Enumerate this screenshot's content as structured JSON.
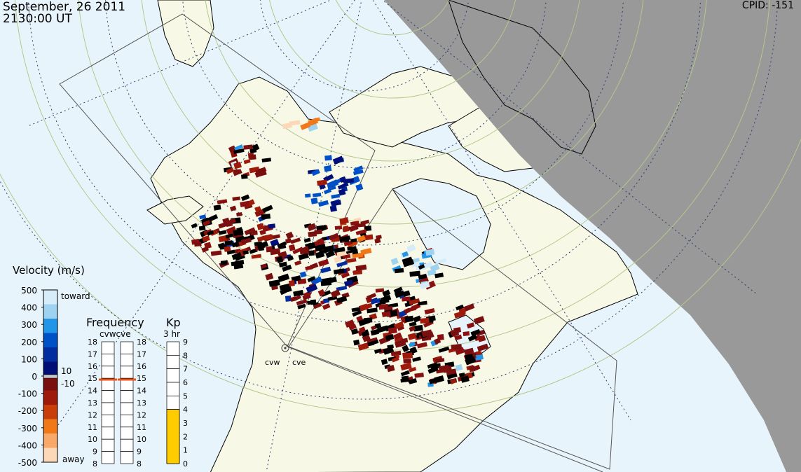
{
  "header": {
    "date": "September, 26 2011",
    "time": "2130:00 UT",
    "cpid": "CPID:  -151"
  },
  "radars": [
    "cvw",
    "cve"
  ],
  "velocity_scale": {
    "title": "Velocity (m/s)",
    "ticks": [
      "500",
      "400",
      "300",
      "200",
      "100",
      "0",
      "-100",
      "-200",
      "-300",
      "-400",
      "-500"
    ],
    "toward_label": "toward",
    "away_label": "away",
    "gs_labels": [
      "10",
      "-10"
    ],
    "colors": [
      "#d6ecf8",
      "#9dd2f0",
      "#2196e8",
      "#0050c8",
      "#002ea0",
      "#000f78",
      "#7a0f0f",
      "#9e1a0a",
      "#c83d08",
      "#f07818",
      "#f8a868",
      "#fcd8b8"
    ]
  },
  "frequency": {
    "title": "Frequency",
    "subtitle": "cvwcve",
    "ticks": [
      "18",
      "17",
      "16",
      "15",
      "14",
      "13",
      "12",
      "11",
      "10",
      "9",
      "8"
    ],
    "values_mhz": {
      "cvw": 14.9,
      "cve": 14.9
    }
  },
  "kp": {
    "title": "Kp",
    "subtitle": "3 hr",
    "ticks": [
      "9",
      "8",
      "7",
      "6",
      "5",
      "4",
      "3",
      "2",
      "1",
      "0"
    ],
    "value": 4,
    "fill_color": "#ffcc00"
  },
  "colors": {
    "ocean": "#e8f4fb",
    "land": "#f8f8e6",
    "night_shade": "#999999",
    "ground_scatter": "#c8c8c8",
    "latitude_lines": "#b4c88c",
    "grid_lines": "#2c3e6c"
  },
  "chart_data": {
    "type": "map",
    "title": "September, 26 2011 2130:00 UT",
    "description_fields": {
      "projection": "polar",
      "overlays": [
        "velocity",
        "ground-scatter",
        "fov"
      ]
    }
  }
}
